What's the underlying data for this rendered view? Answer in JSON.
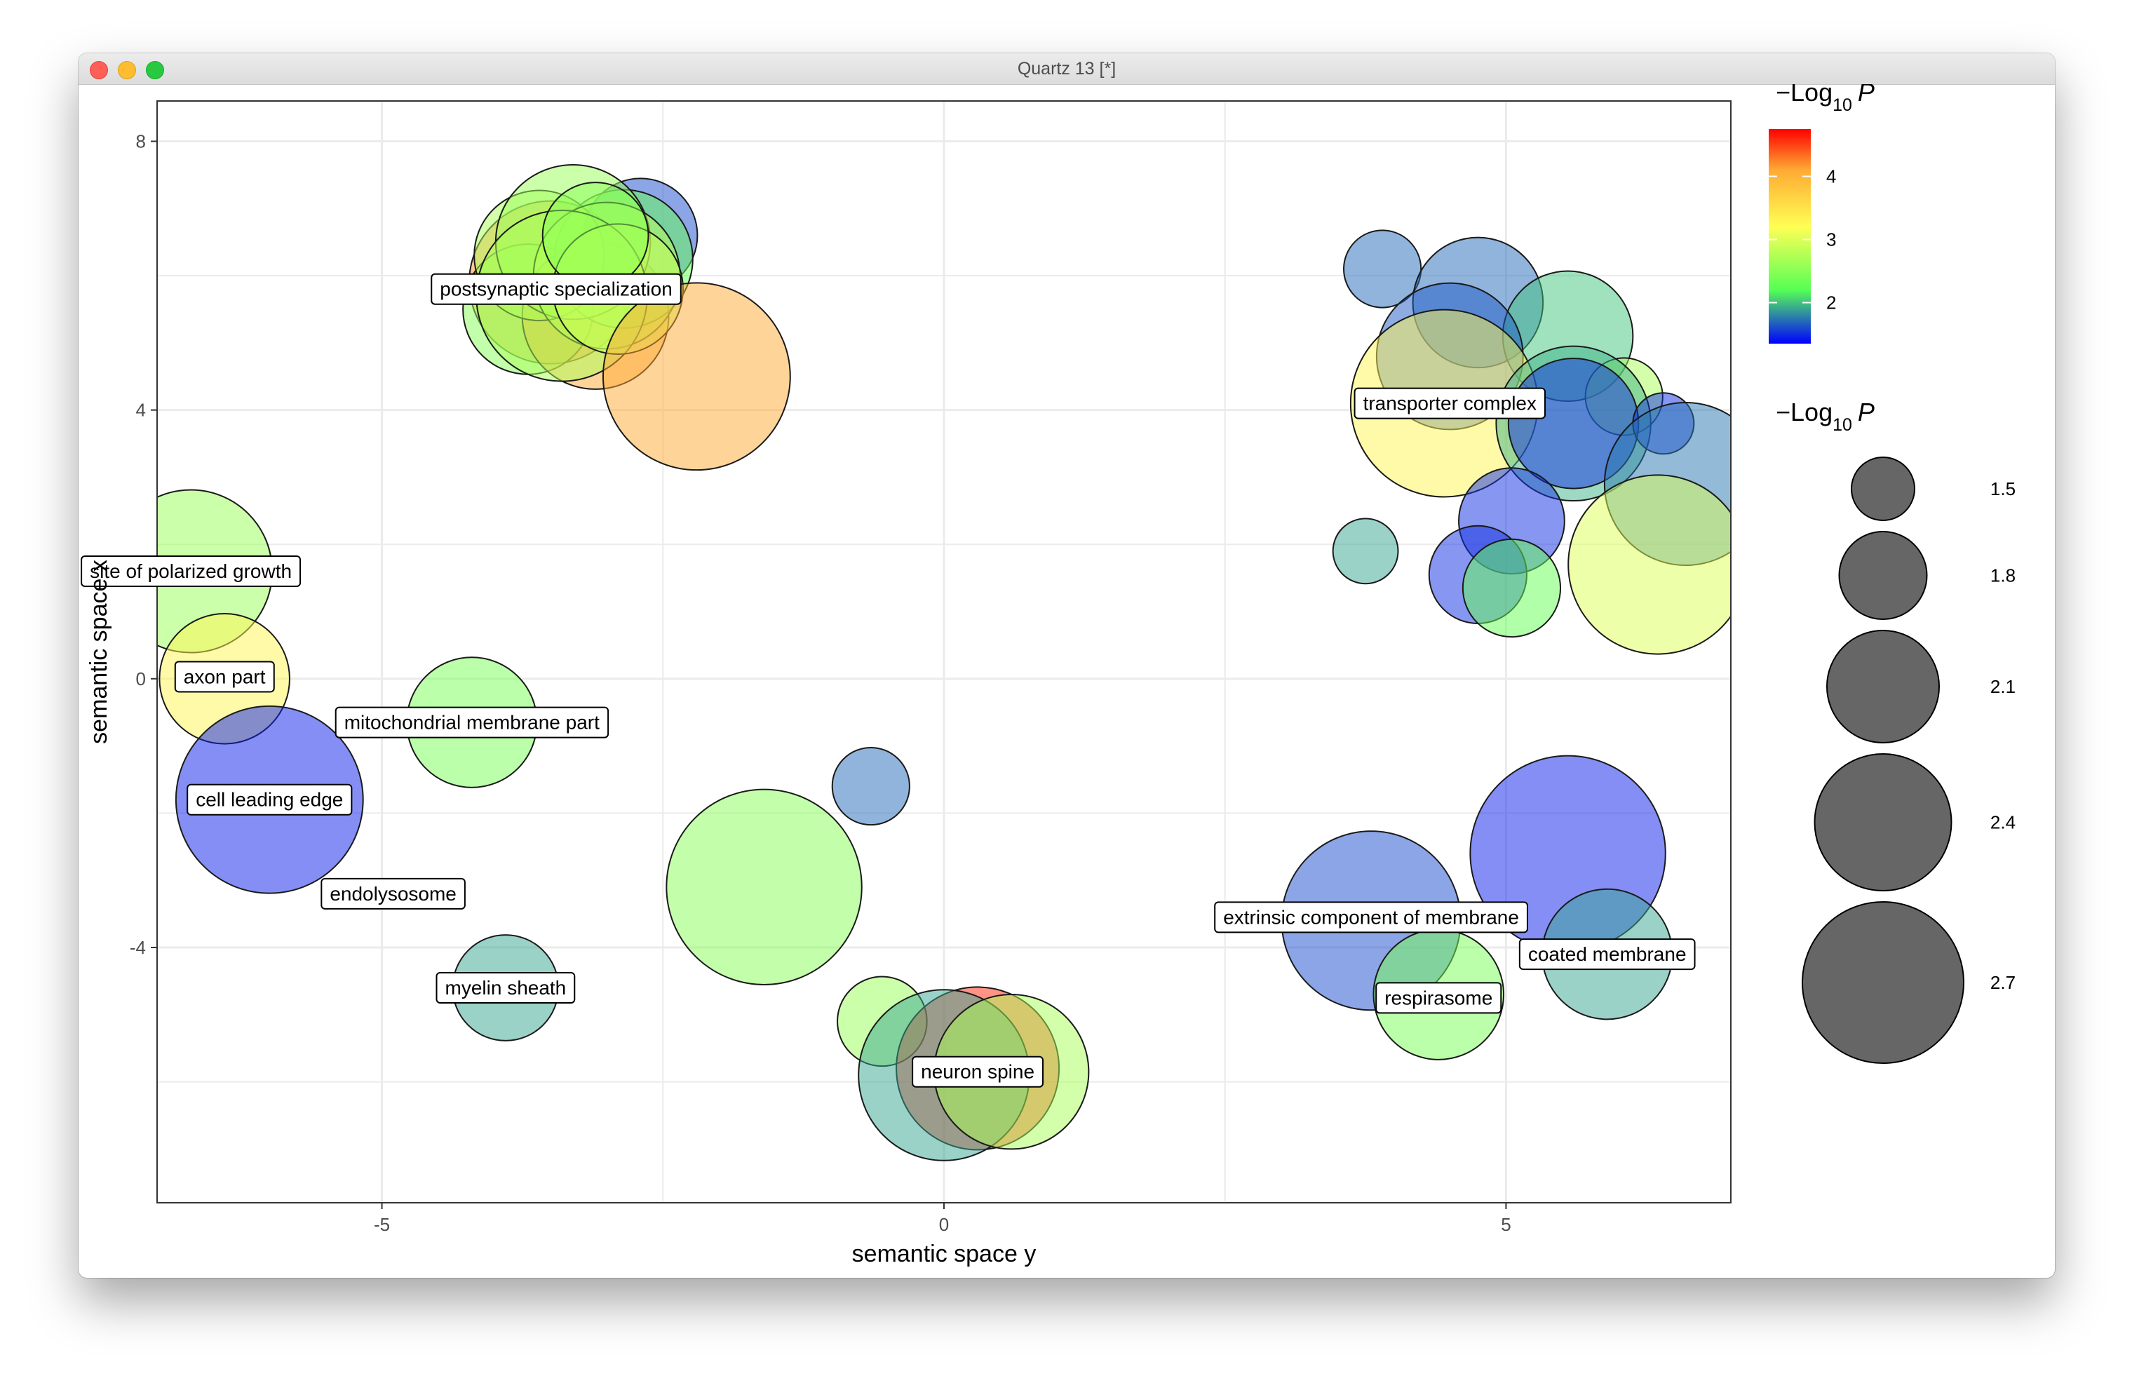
{
  "window": {
    "title": "Quartz 13 [*]"
  },
  "colors": {
    "low": "#0000ff",
    "mid_low": "#55ff55",
    "mid": "#ffff55",
    "mid_high": "#ffaa33",
    "high": "#ff0000",
    "grid": "#ebebeb",
    "bubble_outline": "#1a1a1a",
    "size_legend_fill": "#666666"
  },
  "chart_data": {
    "type": "scatter",
    "xlabel": "semantic space y",
    "ylabel": "semantic space x",
    "xlim": [
      -7.0,
      7.0
    ],
    "ylim": [
      -7.8,
      8.6
    ],
    "x_ticks": [
      -5,
      0,
      5
    ],
    "y_ticks": [
      -4,
      0,
      4,
      8
    ],
    "x_tick_labels": [
      "-5",
      "0",
      "5"
    ],
    "y_tick_labels": [
      "-4",
      "0",
      "4",
      "8"
    ],
    "grid": true,
    "color_legend": {
      "title_prefix": "−Log",
      "title_sub": "10",
      "title_var": "P",
      "ticks": [
        2,
        3,
        4
      ],
      "tick_labels": [
        "2",
        "3",
        "4"
      ],
      "range": [
        1.35,
        4.75
      ],
      "position": "right"
    },
    "size_legend": {
      "title_prefix": "−Log",
      "title_sub": "10",
      "title_var": "P",
      "values": [
        1.5,
        1.8,
        2.1,
        2.4,
        2.7
      ],
      "labels": [
        "1.5",
        "1.8",
        "2.1",
        "2.4",
        "2.7"
      ],
      "position": "right"
    },
    "points": [
      {
        "x": -3.5,
        "y": 5.9,
        "size": 2.0,
        "color": 4.2
      },
      {
        "x": -3.7,
        "y": 5.5,
        "size": 1.6,
        "color": 2.5
      },
      {
        "x": -3.1,
        "y": 5.4,
        "size": 1.8,
        "color": 4.1
      },
      {
        "x": -2.7,
        "y": 6.6,
        "size": 1.4,
        "color": 1.6
      },
      {
        "x": -2.85,
        "y": 6.25,
        "size": 1.7,
        "color": 2.3
      },
      {
        "x": -3.6,
        "y": 6.3,
        "size": 1.6,
        "color": 2.7
      },
      {
        "x": -3.3,
        "y": 6.5,
        "size": 1.9,
        "color": 2.6
      },
      {
        "x": -3.0,
        "y": 6.0,
        "size": 1.8,
        "color": 2.8
      },
      {
        "x": -3.4,
        "y": 5.7,
        "size": 2.1,
        "color": 2.7
      },
      {
        "x": -2.9,
        "y": 5.8,
        "size": 1.6,
        "color": 2.9
      },
      {
        "x": -3.1,
        "y": 6.6,
        "size": 1.3,
        "color": 2.5
      },
      {
        "x": -2.2,
        "y": 4.5,
        "size": 2.3,
        "color": 4.1
      },
      {
        "x": -6.7,
        "y": 1.6,
        "size": 2.0,
        "color": 2.6
      },
      {
        "x": -6.4,
        "y": 0.0,
        "size": 1.6,
        "color": 3.3
      },
      {
        "x": -4.2,
        "y": -0.65,
        "size": 1.6,
        "color": 2.4
      },
      {
        "x": -6.0,
        "y": -1.8,
        "size": 2.3,
        "color": 1.45
      },
      {
        "x": -3.9,
        "y": -4.6,
        "size": 1.3,
        "color": 1.9
      },
      {
        "x": -1.6,
        "y": -3.1,
        "size": 2.4,
        "color": 2.5
      },
      {
        "x": -0.65,
        "y": -1.6,
        "size": 0.95,
        "color": 1.7
      },
      {
        "x": -0.55,
        "y": -5.1,
        "size": 1.1,
        "color": 2.6
      },
      {
        "x": 0.3,
        "y": -5.8,
        "size": 2.0,
        "color": 4.6
      },
      {
        "x": 0.0,
        "y": -5.9,
        "size": 2.1,
        "color": 1.9
      },
      {
        "x": 0.6,
        "y": -5.85,
        "size": 1.9,
        "color": 2.7
      },
      {
        "x": 3.9,
        "y": 6.1,
        "size": 0.95,
        "color": 1.7
      },
      {
        "x": 4.75,
        "y": 5.6,
        "size": 1.6,
        "color": 1.7
      },
      {
        "x": 5.55,
        "y": 5.1,
        "size": 1.6,
        "color": 2.0
      },
      {
        "x": 4.5,
        "y": 4.8,
        "size": 1.8,
        "color": 1.65
      },
      {
        "x": 4.45,
        "y": 4.1,
        "size": 2.3,
        "color": 3.3
      },
      {
        "x": 6.05,
        "y": 4.2,
        "size": 0.95,
        "color": 2.7
      },
      {
        "x": 5.6,
        "y": 3.8,
        "size": 1.9,
        "color": 1.95
      },
      {
        "x": 5.6,
        "y": 3.8,
        "size": 1.6,
        "color": 1.5
      },
      {
        "x": 6.4,
        "y": 3.8,
        "size": 0.75,
        "color": 1.5
      },
      {
        "x": 6.6,
        "y": 2.9,
        "size": 2.0,
        "color": 1.75
      },
      {
        "x": 6.35,
        "y": 1.7,
        "size": 2.2,
        "color": 3.0
      },
      {
        "x": 5.05,
        "y": 2.35,
        "size": 1.3,
        "color": 1.5
      },
      {
        "x": 4.75,
        "y": 1.55,
        "size": 1.2,
        "color": 1.5
      },
      {
        "x": 5.05,
        "y": 1.35,
        "size": 1.2,
        "color": 2.3
      },
      {
        "x": 3.75,
        "y": 1.9,
        "size": 0.8,
        "color": 1.9
      },
      {
        "x": 3.8,
        "y": -3.6,
        "size": 2.2,
        "color": 1.6
      },
      {
        "x": 5.55,
        "y": -2.6,
        "size": 2.4,
        "color": 1.45
      },
      {
        "x": 5.9,
        "y": -4.1,
        "size": 1.6,
        "color": 1.9
      },
      {
        "x": 4.4,
        "y": -4.7,
        "size": 1.6,
        "color": 2.4
      }
    ],
    "labels": [
      {
        "text": "postsynaptic specialization",
        "x": -3.45,
        "y": 5.8
      },
      {
        "text": "transporter complex",
        "x": 4.5,
        "y": 4.1
      },
      {
        "text": "site of polarized growth",
        "x": -6.7,
        "y": 1.6
      },
      {
        "text": "axon part",
        "x": -6.4,
        "y": 0.03
      },
      {
        "text": "mitochondrial membrane part",
        "x": -4.2,
        "y": -0.65
      },
      {
        "text": "cell leading edge",
        "x": -6.0,
        "y": -1.8
      },
      {
        "text": "endolysosome",
        "x": -4.9,
        "y": -3.2
      },
      {
        "text": "myelin sheath",
        "x": -3.9,
        "y": -4.6
      },
      {
        "text": "extrinsic component of membrane",
        "x": 3.8,
        "y": -3.55
      },
      {
        "text": "coated membrane",
        "x": 5.9,
        "y": -4.1
      },
      {
        "text": "respirasome",
        "x": 4.4,
        "y": -4.75
      },
      {
        "text": "neuron spine",
        "x": 0.3,
        "y": -5.85
      }
    ]
  }
}
